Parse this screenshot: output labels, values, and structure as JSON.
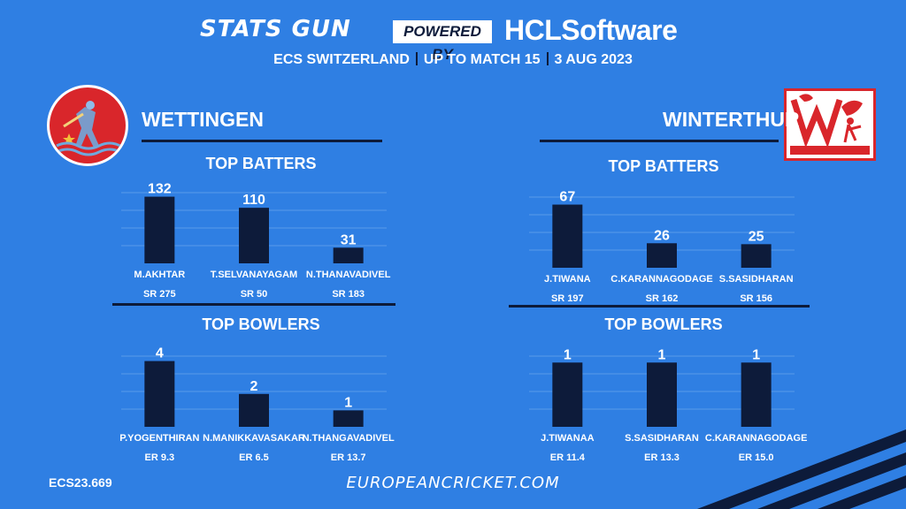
{
  "header": {
    "brand_left": "STATS GUN",
    "powered_by": "POWERED BY",
    "brand_right": "HCLSoftware",
    "subtitle_parts": [
      "ECS SWITZERLAND",
      "UP TO MATCH 15",
      "3 AUG 2023"
    ]
  },
  "teams": {
    "left": {
      "name": "WETTINGEN",
      "logo_icon": "cricket-club-wettingen-logo"
    },
    "right": {
      "name": "WINTERTHUR",
      "logo_icon": "winterthur-cricket-club-logo"
    }
  },
  "section_titles": {
    "batters": "TOP BATTERS",
    "bowlers": "TOP BOWLERS"
  },
  "colors": {
    "background": "#2f7fe3",
    "bar": "#0d1b3a",
    "accent": "#d9262b"
  },
  "chart_data": [
    {
      "id": "wettingen-batters",
      "type": "bar",
      "title": "TOP BATTERS",
      "categories": [
        "M.AKHTAR",
        "T.SELVANAYAGAM",
        "N.THANAVADIVEL"
      ],
      "values": [
        132,
        110,
        31
      ],
      "sublabels": [
        "SR 275",
        "SR 50",
        "SR 183"
      ],
      "ylim": [
        0,
        140
      ],
      "grid": true
    },
    {
      "id": "wettingen-bowlers",
      "type": "bar",
      "title": "TOP BOWLERS",
      "categories": [
        "P.YOGENTHIRAN",
        "N.MANIKKAVASAKAR",
        "N.THANGAVADIVEL"
      ],
      "values": [
        4,
        2,
        1
      ],
      "sublabels": [
        "ER 9.3",
        "ER 6.5",
        "ER 13.7"
      ],
      "ylim": [
        0,
        4.3
      ],
      "grid": true
    },
    {
      "id": "winterthur-batters",
      "type": "bar",
      "title": "TOP BATTERS",
      "categories": [
        "J.TIWANA",
        "C.KARANNAGODAGE",
        "S.SASIDHARAN"
      ],
      "values": [
        67,
        26,
        25
      ],
      "sublabels": [
        "SR 197",
        "SR 162",
        "SR 156"
      ],
      "ylim": [
        0,
        75
      ],
      "grid": true
    },
    {
      "id": "winterthur-bowlers",
      "type": "bar",
      "title": "TOP BOWLERS",
      "categories": [
        "J.TIWANAA",
        "S.SASIDHARAN",
        "C.KARANNAGODAGE"
      ],
      "values": [
        1,
        1,
        1
      ],
      "sublabels": [
        "ER 11.4",
        "ER 13.3",
        "ER 15.0"
      ],
      "ylim": [
        0,
        1.1
      ],
      "grid": true
    }
  ],
  "footer": {
    "code": "ECS23.669",
    "url": "EUROPEANCRICKET.COM"
  }
}
